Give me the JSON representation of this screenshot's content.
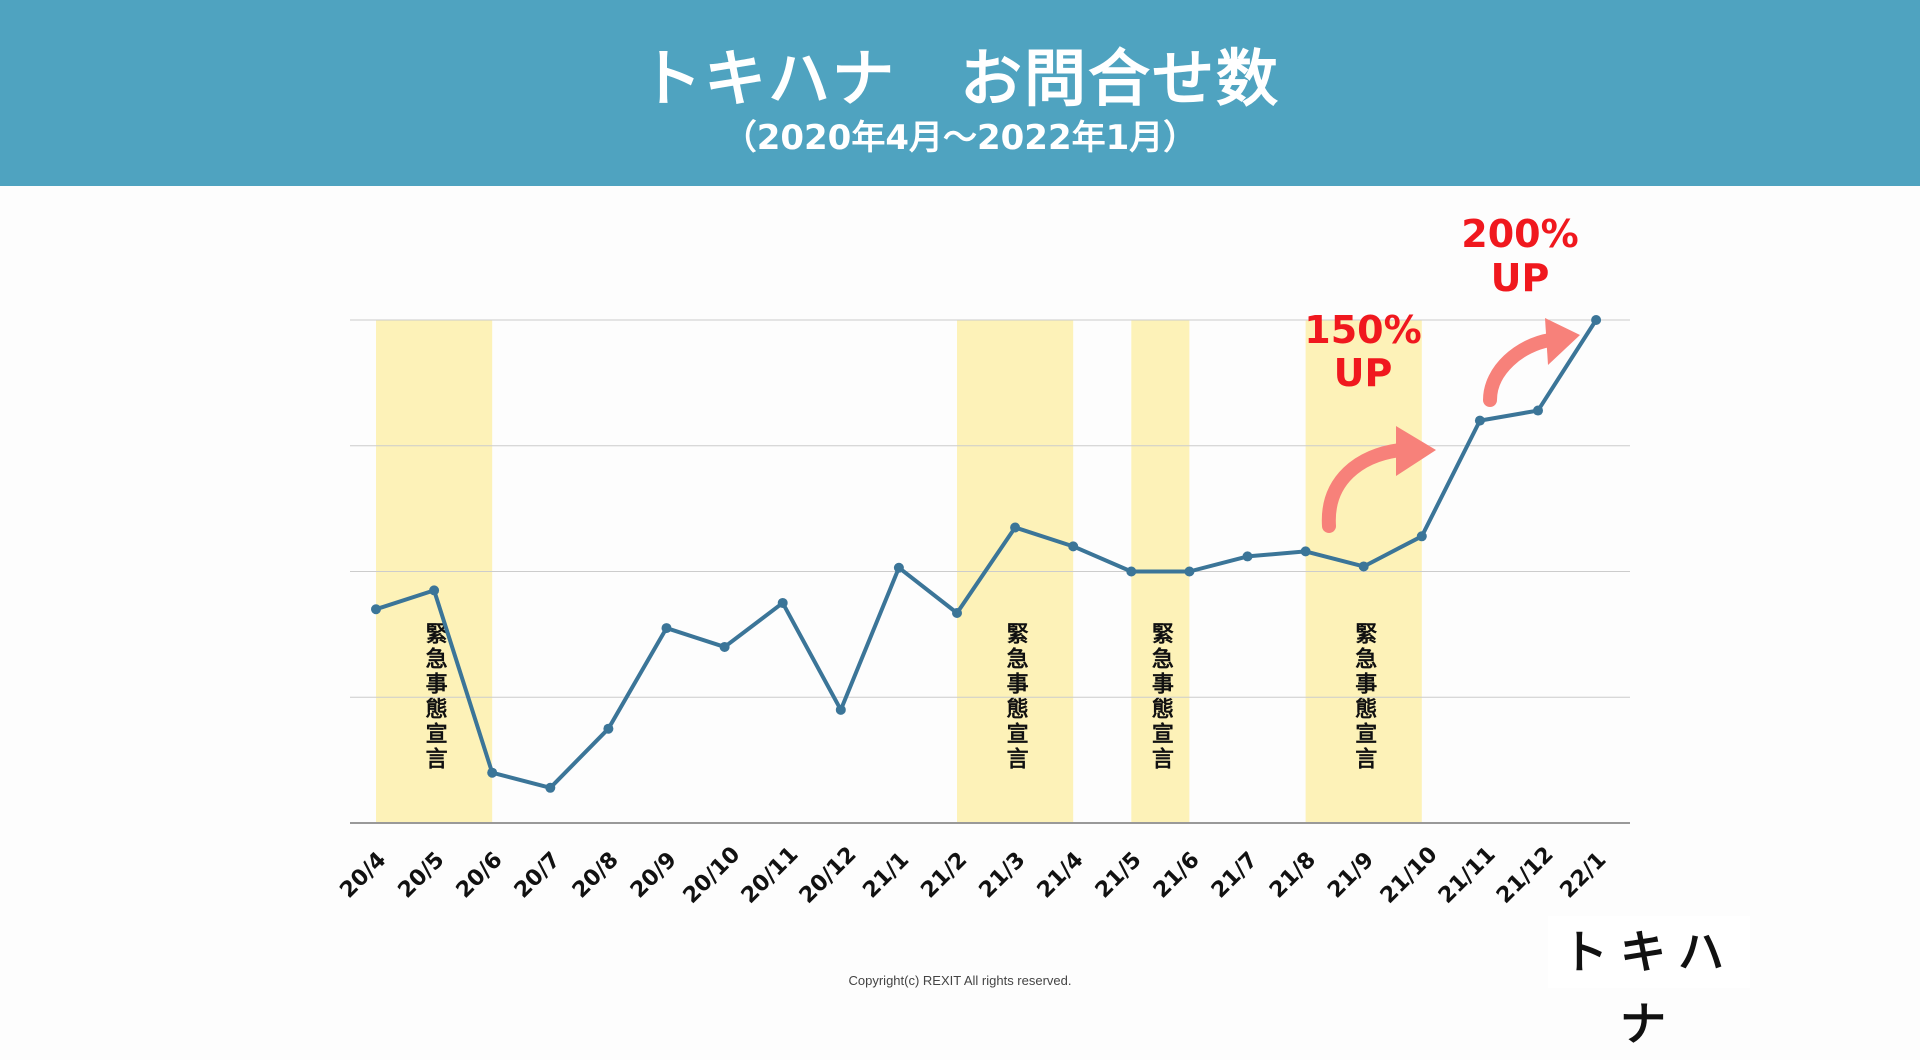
{
  "header": {
    "title": "トキハナ　お問合せ数",
    "subtitle": "（2020年4月〜2022年1月）"
  },
  "colors": {
    "header_bg": "#4fa3c0",
    "line": "#3b7598",
    "band": "#fdf2b8",
    "annotation_red": "#f0181e",
    "arrow": "#f7817a",
    "grid": "#cccccc"
  },
  "chart_data": {
    "type": "line",
    "categories": [
      "20/4",
      "20/5",
      "20/6",
      "20/7",
      "20/8",
      "20/9",
      "20/10",
      "20/11",
      "20/12",
      "21/1",
      "21/2",
      "21/3",
      "21/4",
      "21/5",
      "21/6",
      "21/7",
      "21/8",
      "21/9",
      "21/10",
      "21/11",
      "21/12",
      "22/1"
    ],
    "series": [
      {
        "values": [
          1.7,
          1.85,
          0.4,
          0.28,
          0.75,
          1.55,
          1.4,
          1.75,
          0.9,
          2.03,
          1.67,
          2.35,
          2.2,
          2.0,
          2.0,
          2.12,
          2.16,
          2.04,
          2.28,
          3.2,
          3.28,
          4.0
        ]
      }
    ],
    "ylim": [
      0,
      4
    ],
    "y_ticks_labeled": false,
    "grid": true,
    "bands": [
      {
        "from": "20/4",
        "to": "20/6",
        "label": "緊急事態宣言"
      },
      {
        "from": "21/2",
        "to": "21/4",
        "label": "緊急事態宣言"
      },
      {
        "from": "21/5",
        "to": "21/6",
        "label": "緊急事態宣言"
      },
      {
        "from": "21/8",
        "to": "21/10",
        "label": "緊急事態宣言"
      }
    ],
    "annotations": [
      {
        "line1": "150%",
        "line2": "UP"
      },
      {
        "line1": "200%",
        "line2": "UP"
      }
    ]
  },
  "footer": {
    "copyright": "Copyright(c)  REXIT  All  rights    reserved.",
    "logo": "トキハナ"
  }
}
